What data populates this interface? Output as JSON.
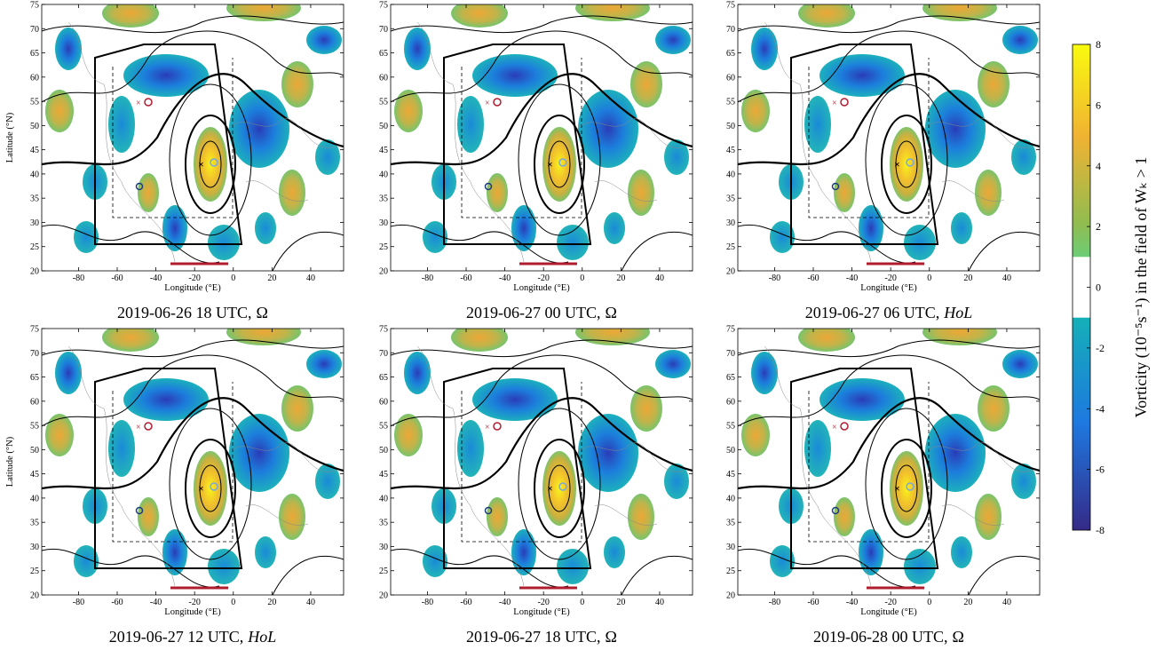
{
  "chart_data": [
    {
      "type": "map",
      "time": "2019-06-26 18 UTC,",
      "regime": "Ω",
      "xlabel": "Longitude (°E)",
      "ylabel": "Latitude (°N)",
      "xlim": [
        -99,
        57
      ],
      "ylim": [
        20,
        75
      ],
      "xticks": [
        -80,
        -60,
        -40,
        -20,
        0,
        20,
        40
      ],
      "yticks": [
        20,
        25,
        30,
        35,
        40,
        45,
        50,
        55,
        60,
        65,
        70,
        75
      ]
    },
    {
      "type": "map",
      "time": "2019-06-27 00 UTC,",
      "regime": "Ω",
      "xlabel": "Longitude (°E)",
      "xlim": [
        -99,
        57
      ],
      "ylim": [
        20,
        75
      ],
      "xticks": [
        -80,
        -60,
        -40,
        -20,
        0,
        20,
        40
      ],
      "yticks": [
        20,
        25,
        30,
        35,
        40,
        45,
        50,
        55,
        60,
        65,
        70,
        75
      ]
    },
    {
      "type": "map",
      "time": "2019-06-27 06 UTC,",
      "regime": "HoL",
      "xlabel": "Longitude (°E)",
      "xlim": [
        -99,
        57
      ],
      "ylim": [
        20,
        75
      ],
      "xticks": [
        -80,
        -60,
        -40,
        -20,
        0,
        20,
        40
      ],
      "yticks": [
        20,
        25,
        30,
        35,
        40,
        45,
        50,
        55,
        60,
        65,
        70,
        75
      ]
    },
    {
      "type": "map",
      "time": "2019-06-27 12 UTC,",
      "regime": "HoL",
      "xlabel": "Longitude (°E)",
      "ylabel": "Latitude (°N)",
      "xlim": [
        -99,
        57
      ],
      "ylim": [
        20,
        75
      ],
      "xticks": [
        -80,
        -60,
        -40,
        -20,
        0,
        20,
        40
      ],
      "yticks": [
        20,
        25,
        30,
        35,
        40,
        45,
        50,
        55,
        60,
        65,
        70,
        75
      ]
    },
    {
      "type": "map",
      "time": "2019-06-27 18 UTC,",
      "regime": "Ω",
      "xlabel": "Longitude (°E)",
      "xlim": [
        -99,
        57
      ],
      "ylim": [
        20,
        75
      ],
      "xticks": [
        -80,
        -60,
        -40,
        -20,
        0,
        20,
        40
      ],
      "yticks": [
        20,
        25,
        30,
        35,
        40,
        45,
        50,
        55,
        60,
        65,
        70,
        75
      ]
    },
    {
      "type": "map",
      "time": "2019-06-28 00 UTC,",
      "regime": "Ω",
      "xlabel": "Longitude (°E)",
      "xlim": [
        -99,
        57
      ],
      "ylim": [
        20,
        75
      ],
      "xticks": [
        -80,
        -60,
        -40,
        -20,
        0,
        20,
        40
      ],
      "yticks": [
        20,
        25,
        30,
        35,
        40,
        45,
        50,
        55,
        60,
        65,
        70,
        75
      ]
    },
    {
      "type": "colorbar",
      "label": "Vorticity (10⁻⁵s⁻¹) in the field of Wₖ > 1",
      "lim": [
        -8,
        8
      ],
      "ticks": [
        -8,
        -6,
        -4,
        -2,
        0,
        2,
        4,
        6,
        8
      ]
    }
  ]
}
